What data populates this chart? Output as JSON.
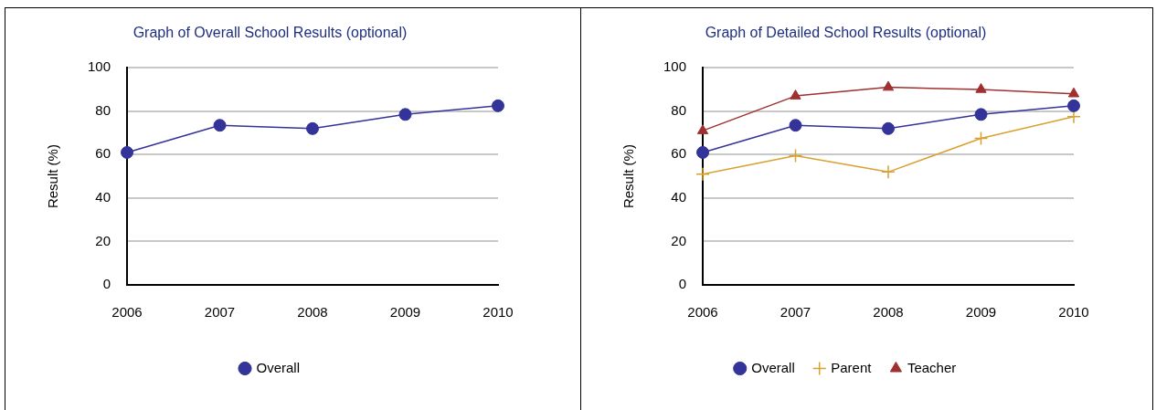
{
  "chart_data": [
    {
      "type": "line",
      "title": "Graph of Overall School Results (optional)",
      "ylabel": "Result (%)",
      "categories": [
        "2006",
        "2007",
        "2008",
        "2009",
        "2010"
      ],
      "ylim": [
        0,
        100
      ],
      "yticks": [
        0,
        20,
        40,
        60,
        80,
        100
      ],
      "grid": "y",
      "legend": "bottom",
      "line_style": "solid",
      "series": [
        {
          "name": "Overall",
          "color": "#333399",
          "marker": "circle",
          "values": [
            61,
            73.5,
            72,
            78.5,
            82.5
          ]
        }
      ]
    },
    {
      "type": "line",
      "title": "Graph of Detailed School Results (optional)",
      "ylabel": "Result (%)",
      "categories": [
        "2006",
        "2007",
        "2008",
        "2009",
        "2010"
      ],
      "ylim": [
        0,
        100
      ],
      "yticks": [
        0,
        20,
        40,
        60,
        80,
        100
      ],
      "grid": "y",
      "legend": "bottom",
      "line_style": "solid",
      "series": [
        {
          "name": "Overall",
          "color": "#333399",
          "marker": "circle",
          "values": [
            61,
            73.5,
            72,
            78.5,
            82.5
          ]
        },
        {
          "name": "Parent",
          "color": "#d9a12f",
          "marker": "cross",
          "values": [
            51,
            59.5,
            52,
            67.5,
            77.5
          ]
        },
        {
          "name": "Teacher",
          "color": "#a0302f",
          "marker": "triangle",
          "values": [
            71,
            87,
            91,
            90,
            88
          ]
        }
      ]
    }
  ]
}
